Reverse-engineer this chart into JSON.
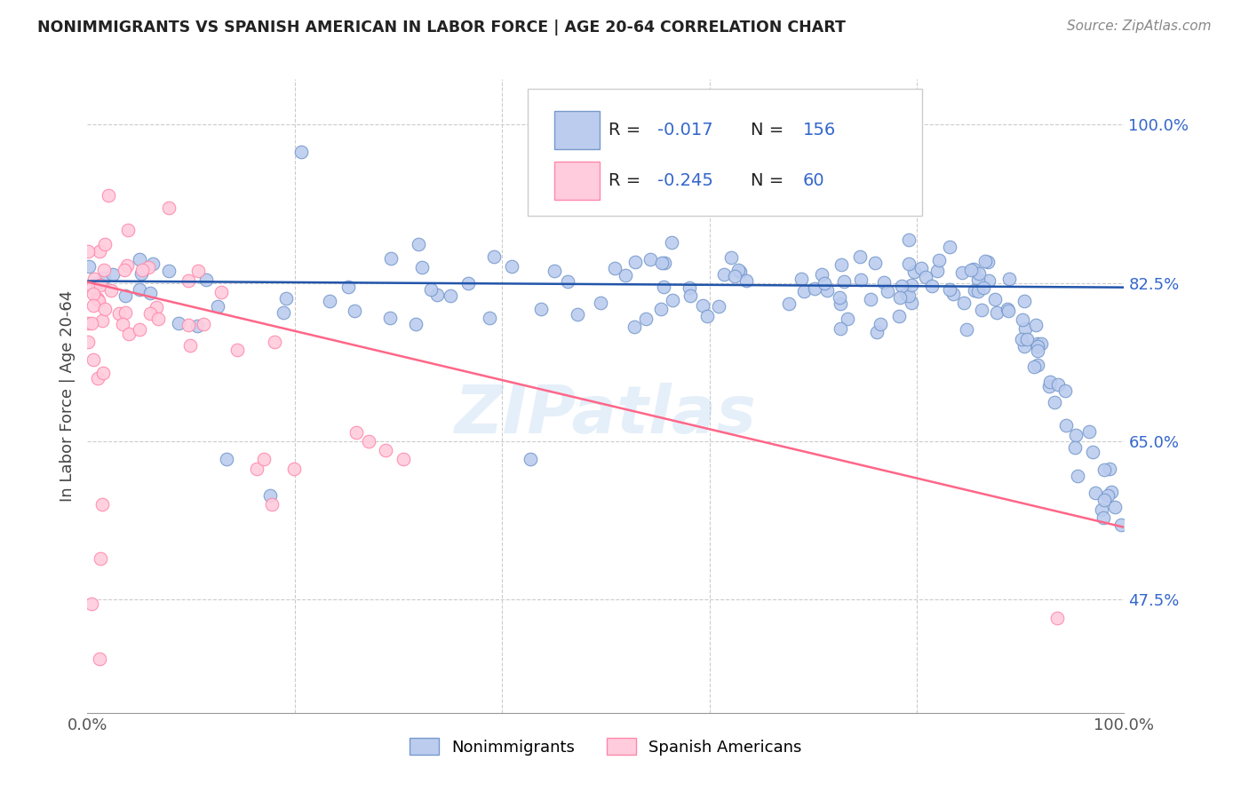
{
  "title": "NONIMMIGRANTS VS SPANISH AMERICAN IN LABOR FORCE | AGE 20-64 CORRELATION CHART",
  "source": "Source: ZipAtlas.com",
  "ylabel": "In Labor Force | Age 20-64",
  "ytick_labels": [
    "100.0%",
    "82.5%",
    "65.0%",
    "47.5%"
  ],
  "ytick_values": [
    1.0,
    0.825,
    0.65,
    0.475
  ],
  "xlim": [
    0.0,
    1.0
  ],
  "ylim": [
    0.35,
    1.05
  ],
  "blue_color": "#7799cc",
  "blue_fill": "#bbccee",
  "pink_color": "#ff88aa",
  "pink_fill": "#ffccdd",
  "blue_R": -0.017,
  "blue_N": 156,
  "pink_R": -0.245,
  "pink_N": 60,
  "blue_line_color": "#2255aa",
  "blue_line_y0": 0.827,
  "blue_line_y1": 0.82,
  "pink_line_color": "#ff6688",
  "pink_line_y0": 0.826,
  "pink_line_y1": 0.555,
  "watermark": "ZIPatlas",
  "legend_label_blue": "Nonimmigrants",
  "legend_label_pink": "Spanish Americans",
  "legend_text_color": "#3366cc",
  "grid_color": "#cccccc",
  "xtick_color": "#555555",
  "ytick_color": "#3366cc"
}
